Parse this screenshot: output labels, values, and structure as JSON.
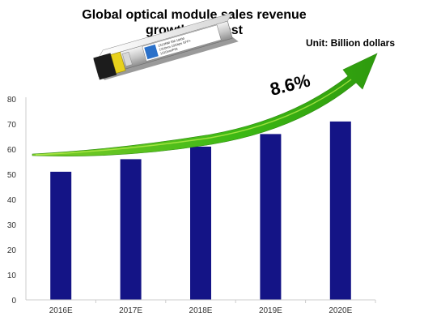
{
  "title_line1": "Global optical module sales revenue",
  "title_line2": "growth forecast",
  "unit_label": "Unit: Billion dollars",
  "growth_label": "8.6%",
  "product_image": {
    "icon": "sfp-optical-module-icon",
    "label_lines": [
      "1310NM  SM  10KM",
      "1310nm 10Gbps SFP+",
      "1310nm/PIN"
    ]
  },
  "colors": {
    "bar": "#141486",
    "arrow": "#3cb814",
    "arrow_light": "#a8e63a",
    "axis": "#cccccc"
  },
  "chart_data": {
    "type": "bar",
    "categories": [
      "2016E",
      "2017E",
      "2018E",
      "2019E",
      "2020E"
    ],
    "values": [
      51,
      56,
      61,
      66,
      71
    ],
    "title": "Global optical module sales revenue growth forecast",
    "xlabel": "",
    "ylabel": "",
    "ylim": [
      0,
      80
    ],
    "yticks": [
      0,
      10,
      20,
      30,
      40,
      50,
      60,
      70,
      80
    ],
    "grid": false,
    "annotation": "8.6%"
  }
}
